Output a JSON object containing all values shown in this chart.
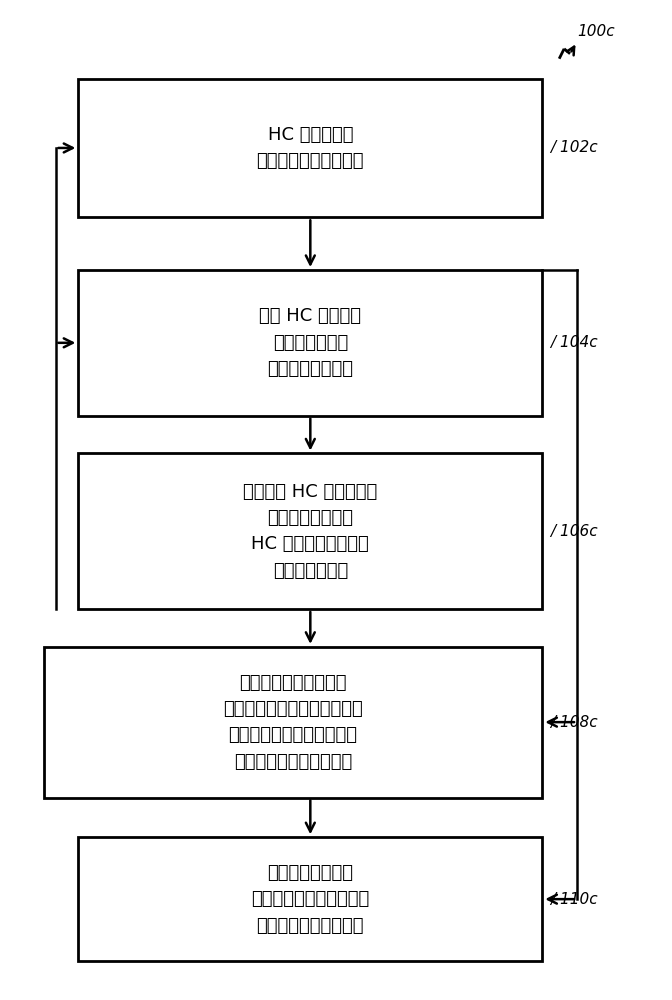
{
  "bg_color": "#ffffff",
  "line_color": "#000000",
  "box_fill": "#ffffff",
  "fig_width": 6.72,
  "fig_height": 10.0,
  "label_100c": "100c",
  "label_102c": "102c",
  "label_104c": "104c",
  "label_106c": "106c",
  "label_108c": "108c",
  "label_110c": "110c",
  "box1_lines": [
    "HC 经历回填，",
    "直到系统处于平衡状态"
  ],
  "box2_lines": [
    "检查 HC 是否已经",
    "到达子域边界、",
    "圈闭边界或溢出点"
  ],
  "box3_lines": [
    "如果到达 HC 子域边界，",
    "则向相邻子域发送",
    "HC 体积、最小位势值",
    "以及索引和列表"
  ],
  "box4_lines": [
    "如果圈闭正在共享成藏",
    "边界，则多个圈闭必须合并。",
    "如果圈闭在不同的子域上，",
    "则将发生圈闭信息的传送"
  ],
  "box5_lines": [
    "如果到达溢出点，",
    "则退出并开始侵入过程，",
    "否则更新油位势并退出"
  ],
  "font_size_box": 13,
  "font_size_label": 11
}
